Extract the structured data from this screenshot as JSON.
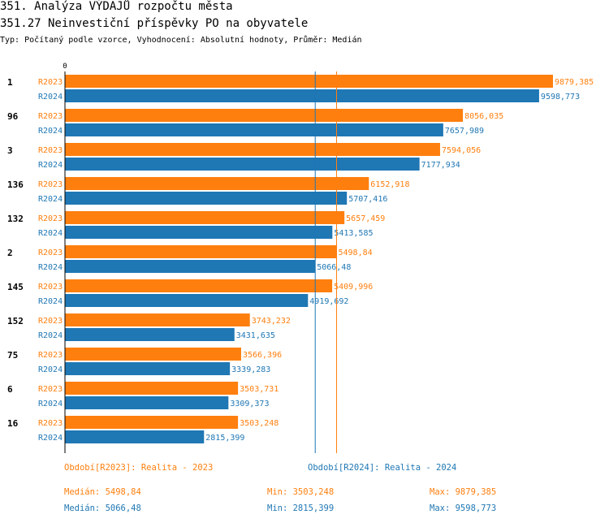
{
  "header": {
    "title": "351. Analýza VÝDAJŮ rozpočtu města",
    "subtitle": "351.27 Neinvestiční příspěvky PO na obyvatele",
    "params": "Typ: Počítaný podle vzorce, Vyhodnocení: Absolutní hodnoty, Průměr: Medián"
  },
  "colors": {
    "r2023": "#ff7f0e",
    "r2024": "#1f77b4"
  },
  "chart_data": {
    "type": "bar",
    "orientation": "horizontal",
    "xlim": [
      0,
      9879.385
    ],
    "x_tick_label": "0",
    "categories": [
      "1",
      "96",
      "3",
      "136",
      "132",
      "2",
      "145",
      "152",
      "75",
      "6",
      "16"
    ],
    "series": [
      {
        "name": "R2023",
        "values": [
          9879.385,
          8056.035,
          7594.056,
          6152.918,
          5657.459,
          5498.84,
          5409.996,
          3743.232,
          3566.396,
          3503.731,
          3503.248
        ],
        "labels": [
          "9879,385",
          "8056,035",
          "7594,056",
          "6152,918",
          "5657,459",
          "5498,84",
          "5409,996",
          "3743,232",
          "3566,396",
          "3503,731",
          "3503,248"
        ]
      },
      {
        "name": "R2024",
        "values": [
          9598.773,
          7657.989,
          7177.934,
          5707.416,
          5413.585,
          5066.48,
          4919.692,
          3431.635,
          3339.283,
          3309.373,
          2815.399
        ],
        "labels": [
          "9598,773",
          "7657,989",
          "7177,934",
          "5707,416",
          "5413,585",
          "5066,48",
          "4919,692",
          "3431,635",
          "3339,283",
          "3309,373",
          "2815,399"
        ]
      }
    ],
    "median_lines": [
      5498.84,
      5066.48
    ]
  },
  "legend": {
    "r2023": "Období[R2023]: Realita - 2023",
    "r2024": "Období[R2024]: Realita - 2024"
  },
  "stats": {
    "r2023": {
      "median": "Medián: 5498,84",
      "min": "Min: 3503,248",
      "max": "Max: 9879,385"
    },
    "r2024": {
      "median": "Medián: 5066,48",
      "min": "Min: 2815,399",
      "max": "Max: 9598,773"
    }
  }
}
